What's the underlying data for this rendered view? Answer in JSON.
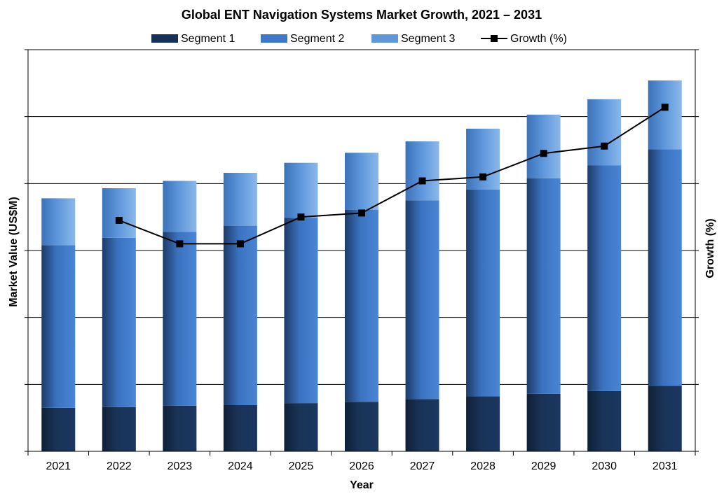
{
  "chart_data": {
    "type": "bar",
    "stacked": true,
    "title": "Global ENT Navigation Systems Market Growth, 2021 – 2031",
    "xlabel": "Year",
    "ylabel": "Market Value (US$M)",
    "y2label": "Growth (%)",
    "categories": [
      "2021",
      "2022",
      "2023",
      "2024",
      "2025",
      "2026",
      "2027",
      "2028",
      "2029",
      "2030",
      "2031"
    ],
    "ylim": [
      0,
      600
    ],
    "y2lim": [
      0,
      6
    ],
    "grid": true,
    "legend_position": "top-center",
    "series": [
      {
        "name": "Segment 1",
        "type": "bar",
        "axis": "left",
        "color": "#1b3660",
        "values": [
          65,
          66,
          68,
          69,
          72,
          74,
          78,
          82,
          86,
          90,
          98
        ]
      },
      {
        "name": "Segment 2",
        "type": "bar",
        "axis": "left",
        "color": "#3f78c8",
        "values": [
          243,
          253,
          260,
          268,
          277,
          287,
          297,
          309,
          322,
          337,
          353
        ]
      },
      {
        "name": "Segment 3",
        "type": "bar",
        "axis": "left",
        "color": "#6ea4e2",
        "values": [
          70,
          74,
          76,
          79,
          82,
          85,
          88,
          91,
          95,
          99,
          103
        ]
      },
      {
        "name": "Growth (%)",
        "type": "line",
        "axis": "right",
        "color": "#000000",
        "values": [
          null,
          3.45,
          3.1,
          3.1,
          3.5,
          3.56,
          4.04,
          4.1,
          4.45,
          4.56,
          5.14
        ]
      }
    ]
  }
}
